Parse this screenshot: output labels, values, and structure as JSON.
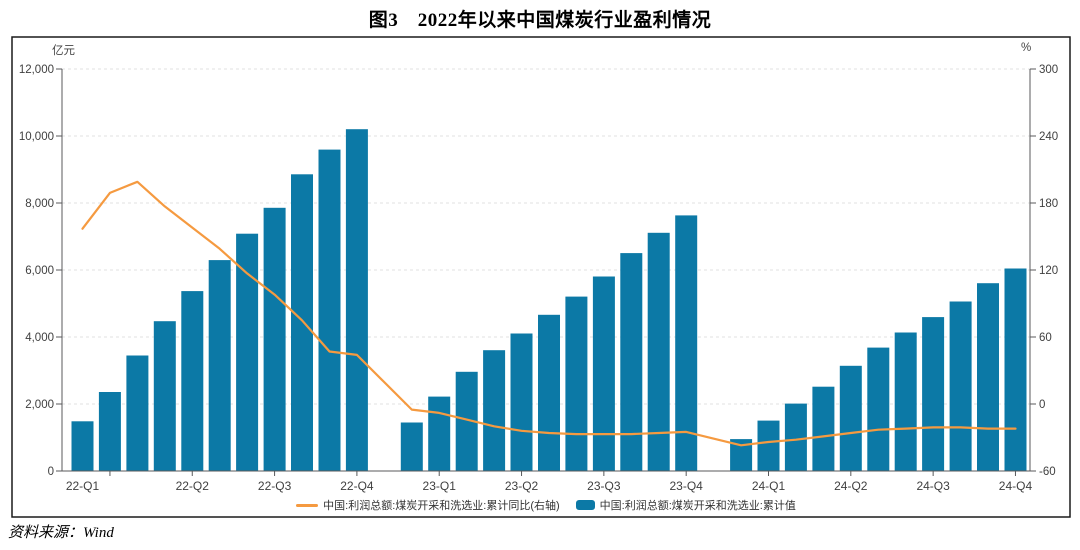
{
  "title": "图3　2022年以来中国煤炭行业盈利情况",
  "source": "资料来源：Wind",
  "axis_units": {
    "left": "亿元",
    "right": "%"
  },
  "legend": {
    "line_label": "中国:利润总额:煤炭开采和洗选业:累计同比(右轴)",
    "bar_label": "中国:利润总额:煤炭开采和洗选业:累计值"
  },
  "colors": {
    "bar": "#0C79A6",
    "line": "#F59A40",
    "grid": "#E2E2E2",
    "axis": "#58595B",
    "text": "#3F3F3F",
    "border": "#1A1A1A"
  },
  "chart_data": {
    "type": "bar",
    "title": "图3 2022年以来中国煤炭行业盈利情况",
    "grid": true,
    "legend_position": "bottom",
    "months": [
      "2022-02",
      "2022-03",
      "2022-04",
      "2022-05",
      "2022-06",
      "2022-07",
      "2022-08",
      "2022-09",
      "2022-10",
      "2022-11",
      "2022-12",
      "2023-01",
      "2023-02",
      "2023-03",
      "2023-04",
      "2023-05",
      "2023-06",
      "2023-07",
      "2023-08",
      "2023-09",
      "2023-10",
      "2023-11",
      "2023-12",
      "2024-01",
      "2024-02",
      "2024-03",
      "2024-04",
      "2024-05",
      "2024-06",
      "2024-07",
      "2024-08",
      "2024-09",
      "2024-10",
      "2024-11",
      "2024-12"
    ],
    "x_tick_slots": [
      1,
      4,
      7,
      10,
      13,
      16,
      19,
      22,
      25,
      28,
      31,
      34
    ],
    "x_tick_labels": [
      "22-Q1",
      "22-Q2",
      "22-Q3",
      "22-Q4",
      "23-Q1",
      "23-Q2",
      "23-Q3",
      "23-Q4",
      "24-Q1",
      "24-Q2",
      "24-Q3",
      "24-Q4"
    ],
    "left_axis": {
      "label": "亿元",
      "min": 0,
      "max": 12000,
      "step": 2000
    },
    "right_axis": {
      "label": "%",
      "min": -60,
      "max": 300,
      "step": 60
    },
    "series": [
      {
        "name": "中国:利润总额:煤炭开采和洗选业:累计值",
        "type": "bar",
        "axis": "left",
        "color": "#0C79A6",
        "values": [
          1483,
          2357,
          3448,
          4473,
          5371,
          6296,
          7084,
          7856,
          8858,
          9594,
          10202,
          null,
          1449,
          2222,
          2960,
          3605,
          4103,
          4663,
          5207,
          5805,
          6505,
          7109,
          7629,
          null,
          952,
          1503,
          2011,
          2515,
          3141,
          3684,
          4135,
          4594,
          5061,
          5606,
          6046
        ]
      },
      {
        "name": "中国:利润总额:煤炭开采和洗选业:累计同比(右轴)",
        "type": "line",
        "axis": "right",
        "color": "#F59A40",
        "values": [
          157,
          189,
          199,
          177,
          158,
          139,
          117,
          98,
          75,
          47,
          44,
          null,
          -5,
          -8,
          -14,
          -20,
          -24,
          -26,
          -27,
          -27,
          -27,
          -26,
          -25,
          null,
          -37,
          -34,
          -32,
          -29,
          -26,
          -23,
          -22,
          -21,
          -21,
          -22,
          -22
        ]
      }
    ]
  }
}
